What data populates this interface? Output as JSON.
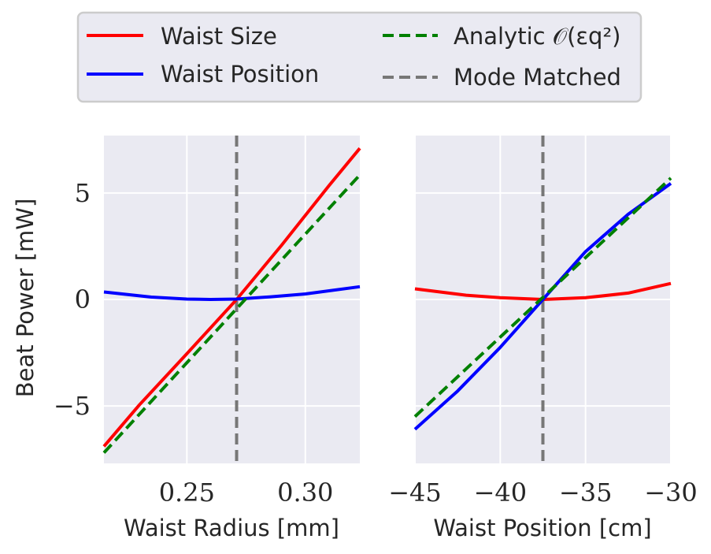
{
  "figure": {
    "legend": {
      "placement": "top-center",
      "entries": [
        {
          "label": "Waist Size",
          "color": "#ff0000",
          "dash": "solid"
        },
        {
          "label": "Analytic 𝒪(εq²)",
          "color": "#008000",
          "dash": "dashed"
        },
        {
          "label": "Waist Position",
          "color": "#0000ff",
          "dash": "solid"
        },
        {
          "label": "Mode Matched",
          "color": "#777777",
          "dash": "dashed"
        }
      ]
    },
    "shared_ylabel": "Beat Power [mW]"
  },
  "chart_data": [
    {
      "type": "line",
      "xlabel": "Waist Radius [mm]",
      "ylabel": "Beat Power [mW]",
      "xlim": [
        0.215,
        0.323
      ],
      "ylim": [
        -7.7,
        7.7
      ],
      "xticks": [
        0.25,
        0.3
      ],
      "xtick_labels": [
        "0.25",
        "0.30"
      ],
      "yticks": [
        -5,
        0,
        5
      ],
      "ytick_labels": [
        "−5",
        "0",
        "5"
      ],
      "vline": {
        "x": 0.271,
        "label": "Mode Matched",
        "color": "#777777"
      },
      "grid": true,
      "series": [
        {
          "name": "Waist Size",
          "color": "#ff0000",
          "dash": "solid",
          "x": [
            0.215,
            0.23,
            0.25,
            0.271,
            0.29,
            0.31,
            0.323
          ],
          "y": [
            -6.9,
            -4.95,
            -2.55,
            0.0,
            2.55,
            5.35,
            7.1
          ]
        },
        {
          "name": "Waist Position",
          "color": "#0000ff",
          "dash": "solid",
          "x": [
            0.215,
            0.235,
            0.25,
            0.26,
            0.271,
            0.285,
            0.3,
            0.323
          ],
          "y": [
            0.35,
            0.11,
            0.02,
            0.0,
            0.02,
            0.12,
            0.26,
            0.6
          ]
        },
        {
          "name": "Analytic 𝒪(εq²)",
          "color": "#008000",
          "dash": "dashed",
          "x": [
            0.215,
            0.323
          ],
          "y": [
            -7.2,
            5.85
          ]
        }
      ]
    },
    {
      "type": "line",
      "xlabel": "Waist Position [cm]",
      "ylabel": "",
      "xlim": [
        -45,
        -30
      ],
      "ylim": [
        -7.7,
        7.7
      ],
      "xticks": [
        -45,
        -40,
        -35,
        -30
      ],
      "xtick_labels": [
        "−45",
        "−40",
        "−35",
        "−30"
      ],
      "yticks": [
        -5,
        0,
        5
      ],
      "ytick_labels": [],
      "vline": {
        "x": -37.5,
        "label": "Mode Matched",
        "color": "#777777"
      },
      "grid": true,
      "series": [
        {
          "name": "Waist Size",
          "color": "#ff0000",
          "dash": "solid",
          "x": [
            -45,
            -42,
            -40,
            -37.5,
            -35,
            -32.5,
            -30
          ],
          "y": [
            0.5,
            0.2,
            0.08,
            0.0,
            0.08,
            0.3,
            0.75
          ]
        },
        {
          "name": "Waist Position",
          "color": "#0000ff",
          "dash": "solid",
          "x": [
            -45,
            -42.5,
            -40,
            -37.5,
            -35,
            -32.5,
            -30
          ],
          "y": [
            -6.1,
            -4.3,
            -2.25,
            0.0,
            2.25,
            4.0,
            5.45
          ]
        },
        {
          "name": "Analytic 𝒪(εq²)",
          "color": "#008000",
          "dash": "dashed",
          "x": [
            -45,
            -30
          ],
          "y": [
            -5.5,
            5.7
          ]
        }
      ]
    }
  ]
}
